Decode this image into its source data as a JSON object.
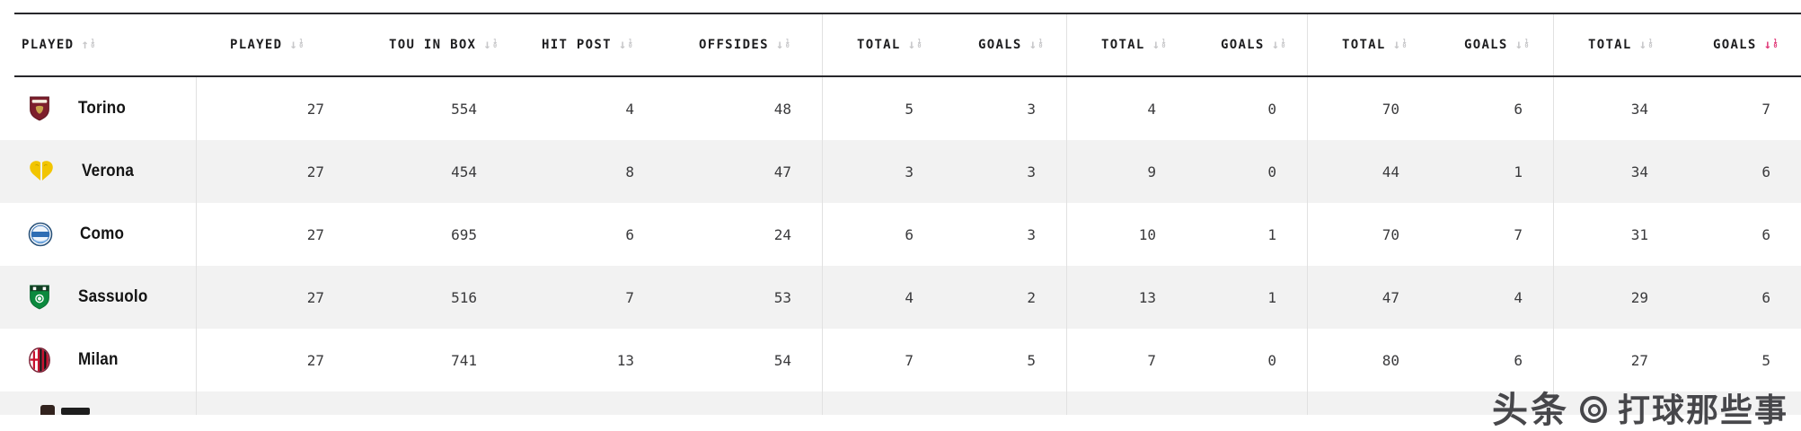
{
  "table": {
    "columns": [
      {
        "label": "PLAYED",
        "sort": "asc",
        "active": false,
        "group_start": false
      },
      {
        "label": "PLAYED",
        "sort": "desc",
        "active": false,
        "group_start": false
      },
      {
        "label": "TOU IN BOX",
        "sort": "desc",
        "active": false,
        "group_start": false
      },
      {
        "label": "HIT POST",
        "sort": "desc",
        "active": false,
        "group_start": false
      },
      {
        "label": "OFFSIDES",
        "sort": "desc",
        "active": false,
        "group_start": false
      },
      {
        "label": "TOTAL",
        "sort": "desc",
        "active": false,
        "group_start": true
      },
      {
        "label": "GOALS",
        "sort": "desc",
        "active": false,
        "group_start": false
      },
      {
        "label": "TOTAL",
        "sort": "desc",
        "active": false,
        "group_start": true
      },
      {
        "label": "GOALS",
        "sort": "desc",
        "active": false,
        "group_start": false
      },
      {
        "label": "TOTAL",
        "sort": "desc",
        "active": false,
        "group_start": true
      },
      {
        "label": "GOALS",
        "sort": "desc",
        "active": false,
        "group_start": false
      },
      {
        "label": "TOTAL",
        "sort": "desc",
        "active": false,
        "group_start": true
      },
      {
        "label": "GOALS",
        "sort": "desc",
        "active": true,
        "group_start": false
      }
    ],
    "rows": [
      {
        "team": "Torino",
        "logo": "torino-crest",
        "values": [
          "27",
          "554",
          "4",
          "48",
          "5",
          "3",
          "4",
          "0",
          "70",
          "6",
          "34",
          "7"
        ]
      },
      {
        "team": "Verona",
        "logo": "verona-crest",
        "values": [
          "27",
          "454",
          "8",
          "47",
          "3",
          "3",
          "9",
          "0",
          "44",
          "1",
          "34",
          "6"
        ]
      },
      {
        "team": "Como",
        "logo": "como-crest",
        "values": [
          "27",
          "695",
          "6",
          "24",
          "6",
          "3",
          "10",
          "1",
          "70",
          "7",
          "31",
          "6"
        ]
      },
      {
        "team": "Sassuolo",
        "logo": "sassuolo-crest",
        "values": [
          "27",
          "516",
          "7",
          "53",
          "4",
          "2",
          "13",
          "1",
          "47",
          "4",
          "29",
          "6"
        ]
      },
      {
        "team": "Milan",
        "logo": "milan-crest",
        "values": [
          "27",
          "741",
          "13",
          "54",
          "7",
          "5",
          "7",
          "0",
          "80",
          "6",
          "27",
          "5"
        ]
      }
    ]
  },
  "watermark": {
    "brand": "头条",
    "account": "打球那些事"
  },
  "colors": {
    "row_alt": "#f2f2f2",
    "border_dark": "#27272b",
    "divider": "#e1e1e1",
    "sort_idle": "#c7c7c9",
    "sort_active": "#e03b79",
    "torino_maroon": "#7d1f2c",
    "verona_yellow": "#f2c500",
    "como_blue": "#2e6db4",
    "sassuolo_green": "#0b8a3e",
    "milan_red": "#c8102e",
    "milan_black": "#111111"
  }
}
